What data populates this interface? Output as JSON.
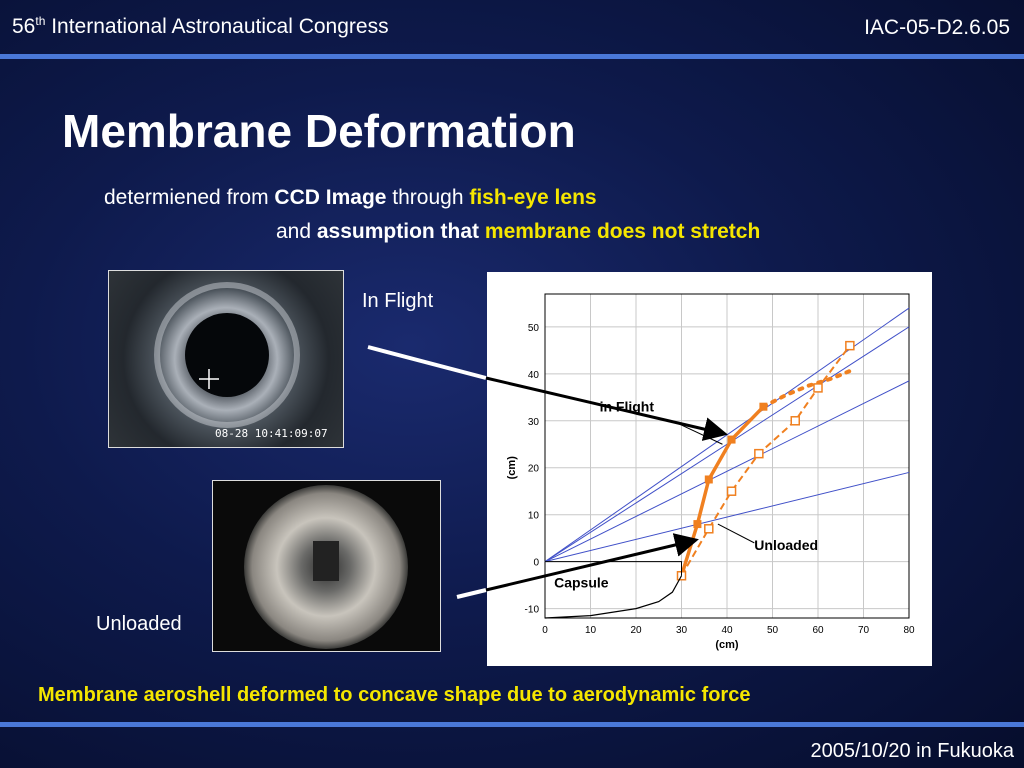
{
  "header": {
    "conference_num": "56",
    "conference_sup": "th",
    "conference_rest": " International Astronautical Congress",
    "paper_id": "IAC-05-D2.6.05"
  },
  "slide": {
    "title": "Membrane Deformation",
    "line1": {
      "a": "determiened from ",
      "b": "CCD Image",
      "c": " through ",
      "d": "fish-eye lens"
    },
    "line2": {
      "a": "and ",
      "b": "assumption that",
      "c": " membrane does not stretch"
    },
    "label_in_flight": "In Flight",
    "label_unloaded": "Unloaded",
    "photo_timestamp": "08-28 10:41:09:07",
    "caption": "Membrane aeroshell deformed to concave shape due to aerodynamic force"
  },
  "footer": {
    "date": "2005/10/20 in Fukuoka"
  },
  "colors": {
    "accent_yellow": "#f5e600",
    "rule_blue": "#4a78d8",
    "series_orange": "#f08020",
    "ray_blue": "#4050c8"
  },
  "chart_data": {
    "type": "line",
    "xlabel": "(cm)",
    "ylabel": "(cm)",
    "xlim": [
      0,
      80
    ],
    "ylim": [
      -12,
      57
    ],
    "xticks": [
      0,
      10,
      20,
      30,
      40,
      50,
      60,
      70,
      80
    ],
    "yticks": [
      -10,
      0,
      10,
      20,
      30,
      40,
      50
    ],
    "grid": true,
    "annotations": [
      "in Flight",
      "Unloaded",
      "Capsule"
    ],
    "series": [
      {
        "name": "in Flight",
        "style": "solid-filled-square",
        "x": [
          30,
          33.5,
          36,
          41,
          48
        ],
        "y": [
          -3,
          8,
          17.5,
          26,
          33
        ]
      },
      {
        "name": "in Flight (extension)",
        "style": "dotted",
        "x": [
          48,
          53,
          58,
          63,
          68
        ],
        "y": [
          33,
          35.5,
          37.5,
          39,
          41
        ]
      },
      {
        "name": "Unloaded",
        "style": "dashed-open-square",
        "x": [
          30,
          36,
          41,
          47,
          55,
          60,
          67
        ],
        "y": [
          -3,
          7,
          15,
          23,
          30,
          37,
          46
        ]
      },
      {
        "name": "Capsule",
        "style": "solid-thin",
        "x": [
          0,
          10,
          20,
          25,
          28,
          30
        ],
        "y": [
          -12,
          -11.5,
          -10,
          -8.5,
          -6.5,
          -3
        ]
      }
    ],
    "rays": [
      {
        "from": [
          0,
          0
        ],
        "to": [
          80,
          54
        ]
      },
      {
        "from": [
          0,
          0
        ],
        "to": [
          80,
          50
        ]
      },
      {
        "from": [
          0,
          0
        ],
        "to": [
          80,
          38.5
        ]
      },
      {
        "from": [
          0,
          0
        ],
        "to": [
          80,
          19
        ]
      }
    ]
  }
}
